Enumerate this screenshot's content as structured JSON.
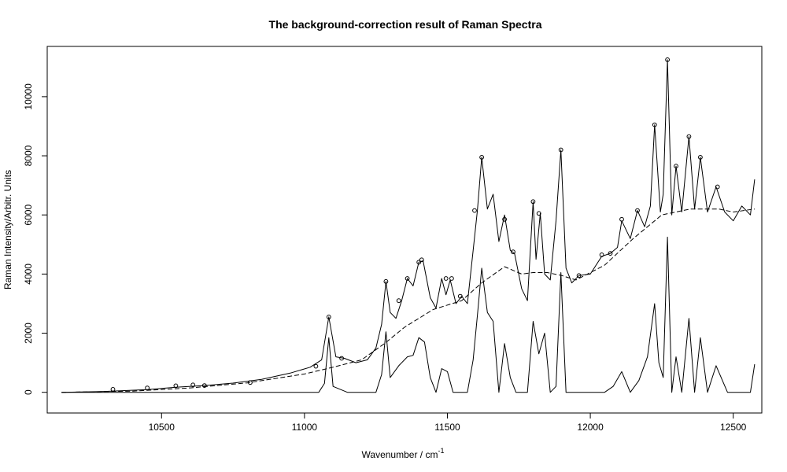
{
  "chart_data": {
    "type": "line",
    "title": "The background-correction result of Raman Spectra",
    "xlabel_main": "Wavenumber / cm",
    "xlabel_sup": "-1",
    "ylabel": "Raman Intensity/Arbitr. Units",
    "xlim": [
      10100,
      12600
    ],
    "ylim": [
      -700,
      11700
    ],
    "xticks": [
      10500,
      11000,
      11500,
      12000,
      12500
    ],
    "xtick_labels": [
      "10500",
      "11000",
      "11500",
      "12000",
      "12500"
    ],
    "yticks": [
      0,
      2000,
      4000,
      6000,
      8000,
      10000
    ],
    "ytick_labels": [
      "0",
      "2000",
      "4000",
      "6000",
      "8000",
      "10000"
    ],
    "grid": false,
    "colors": {
      "line": "#000000",
      "background": "#ffffff"
    },
    "series": [
      {
        "style": "solid",
        "x": [
          10150,
          10300,
          10450,
          10550,
          10650,
          10750,
          10850,
          10950,
          11020,
          11060,
          11085,
          11110,
          11140,
          11180,
          11220,
          11250,
          11270,
          11285,
          11300,
          11320,
          11340,
          11360,
          11380,
          11400,
          11415,
          11440,
          11460,
          11480,
          11495,
          11510,
          11530,
          11550,
          11570,
          11590,
          11605,
          11620,
          11640,
          11660,
          11680,
          11700,
          11720,
          11735,
          11760,
          11780,
          11800,
          11810,
          11825,
          11840,
          11860,
          11880,
          11897,
          11915,
          11935,
          11960,
          12000,
          12040,
          12070,
          12095,
          12110,
          12140,
          12165,
          12190,
          12210,
          12225,
          12245,
          12255,
          12270,
          12285,
          12300,
          12320,
          12345,
          12365,
          12385,
          12410,
          12440,
          12470,
          12500,
          12530,
          12560,
          12575
        ],
        "y": [
          0,
          30,
          90,
          170,
          230,
          310,
          440,
          650,
          850,
          1100,
          2550,
          1200,
          1150,
          1000,
          1100,
          1500,
          2300,
          3750,
          2700,
          2500,
          3100,
          3850,
          3600,
          4400,
          4450,
          3200,
          2850,
          3850,
          3300,
          3800,
          3000,
          3250,
          3000,
          4800,
          6150,
          7950,
          6200,
          6700,
          5100,
          6000,
          4800,
          4700,
          3500,
          3100,
          6450,
          4500,
          6050,
          4000,
          3800,
          5800,
          8200,
          4200,
          3700,
          3950,
          4000,
          4600,
          4700,
          4900,
          5800,
          5200,
          6150,
          5600,
          6300,
          9050,
          6100,
          6700,
          11250,
          6000,
          7650,
          6100,
          8650,
          6200,
          7950,
          6100,
          6950,
          6100,
          5800,
          6300,
          6000,
          7200
        ]
      },
      {
        "style": "dashed",
        "x": [
          10150,
          10400,
          10600,
          10800,
          11000,
          11100,
          11200,
          11280,
          11350,
          11450,
          11550,
          11620,
          11700,
          11760,
          11800,
          11850,
          11900,
          11950,
          12050,
          12150,
          12250,
          12350,
          12450,
          12500,
          12575
        ],
        "y": [
          0,
          40,
          150,
          320,
          620,
          850,
          1100,
          1650,
          2200,
          2800,
          3100,
          3700,
          4250,
          4000,
          4050,
          4050,
          3950,
          3800,
          4300,
          5200,
          6000,
          6200,
          6200,
          6100,
          6200
        ]
      },
      {
        "style": "solid",
        "x": [
          10150,
          10500,
          10900,
          11050,
          11070,
          11085,
          11100,
          11150,
          11200,
          11250,
          11270,
          11285,
          11300,
          11330,
          11360,
          11380,
          11400,
          11420,
          11440,
          11460,
          11480,
          11500,
          11520,
          11550,
          11570,
          11590,
          11605,
          11620,
          11640,
          11660,
          11680,
          11700,
          11720,
          11740,
          11760,
          11780,
          11800,
          11820,
          11840,
          11860,
          11880,
          11897,
          11915,
          11940,
          12000,
          12050,
          12080,
          12110,
          12140,
          12170,
          12200,
          12225,
          12240,
          12255,
          12270,
          12285,
          12300,
          12320,
          12345,
          12365,
          12385,
          12410,
          12440,
          12480,
          12520,
          12560,
          12575
        ],
        "y": [
          0,
          0,
          0,
          0,
          300,
          1850,
          200,
          0,
          0,
          0,
          600,
          2050,
          500,
          900,
          1200,
          1250,
          1850,
          1700,
          500,
          0,
          800,
          700,
          0,
          0,
          0,
          1100,
          2600,
          4200,
          2700,
          2400,
          0,
          1650,
          500,
          0,
          0,
          0,
          2400,
          1300,
          2000,
          0,
          200,
          4050,
          0,
          0,
          0,
          0,
          200,
          700,
          0,
          400,
          1200,
          3000,
          1000,
          500,
          5250,
          0,
          1200,
          0,
          2500,
          0,
          1850,
          0,
          900,
          0,
          0,
          0,
          950
        ]
      }
    ],
    "markers": {
      "x": [
        10330,
        10450,
        10550,
        10610,
        10650,
        10810,
        11040,
        11085,
        11130,
        11285,
        11330,
        11360,
        11400,
        11410,
        11495,
        11515,
        11545,
        11595,
        11620,
        11700,
        11730,
        11800,
        11820,
        11897,
        11960,
        12040,
        12070,
        12110,
        12165,
        12225,
        12270,
        12300,
        12345,
        12385,
        12445
      ],
      "y": [
        100,
        150,
        220,
        250,
        230,
        330,
        880,
        2550,
        1150,
        3750,
        3100,
        3850,
        4400,
        4480,
        3850,
        3850,
        3250,
        6150,
        7950,
        5850,
        4750,
        6450,
        6050,
        8200,
        3950,
        4650,
        4700,
        5850,
        6150,
        9050,
        11250,
        7650,
        8650,
        7950,
        6950
      ]
    }
  }
}
